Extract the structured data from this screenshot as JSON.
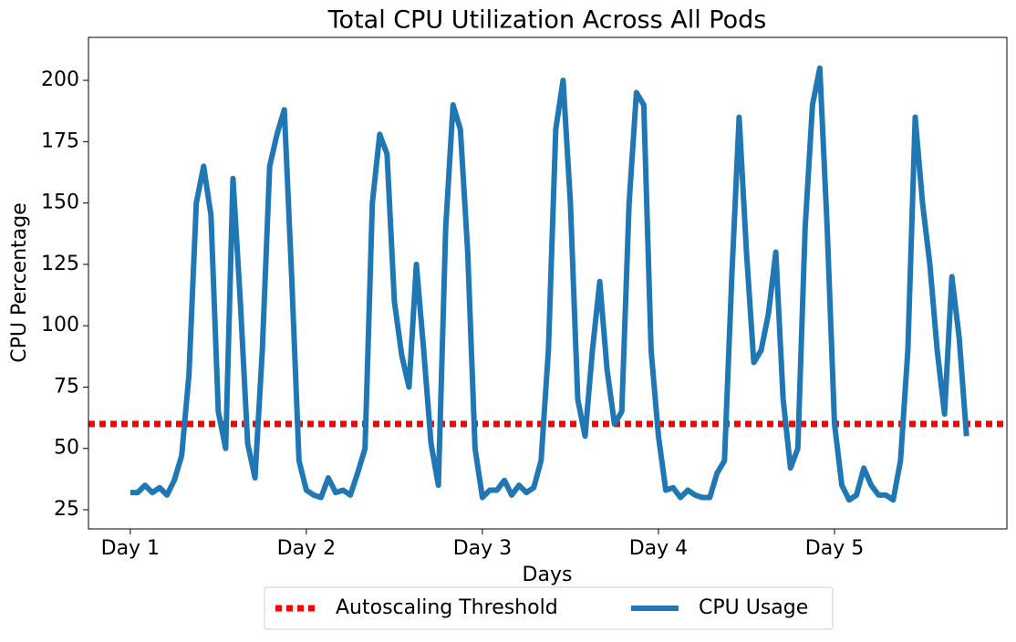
{
  "chart_data": {
    "type": "line",
    "title": "Total CPU Utilization Across All Pods",
    "x_label": "Days",
    "y_label": "CPU Percentage",
    "x": [
      0,
      1,
      2,
      3,
      4,
      5,
      6,
      7,
      8,
      9,
      10,
      11,
      12,
      13,
      14,
      15,
      16,
      17,
      18,
      19,
      20,
      21,
      22,
      23,
      24,
      25,
      26,
      27,
      28,
      29,
      30,
      31,
      32,
      33,
      34,
      35,
      36,
      37,
      38,
      39,
      40,
      41,
      42,
      43,
      44,
      45,
      46,
      47,
      48,
      49,
      50,
      51,
      52,
      53,
      54,
      55,
      56,
      57,
      58,
      59,
      60,
      61,
      62,
      63,
      64,
      65,
      66,
      67,
      68,
      69,
      70,
      71,
      72,
      73,
      74,
      75,
      76,
      77,
      78,
      79,
      80,
      81,
      82,
      83,
      84,
      85,
      86,
      87,
      88,
      89,
      90,
      91,
      92,
      93,
      94,
      95,
      96,
      97,
      98,
      99,
      100,
      101,
      102,
      103,
      104,
      105,
      106,
      107,
      108,
      109,
      110,
      111,
      112,
      113,
      114
    ],
    "series": [
      {
        "name": "CPU Usage",
        "color": "#1f77b4",
        "values": [
          32,
          32,
          35,
          32,
          34,
          31,
          37,
          47,
          80,
          150,
          165,
          145,
          65,
          50,
          160,
          110,
          52,
          38,
          90,
          165,
          178,
          188,
          120,
          45,
          33,
          31,
          30,
          38,
          32,
          33,
          31,
          40,
          50,
          150,
          178,
          170,
          110,
          88,
          75,
          125,
          90,
          52,
          35,
          140,
          190,
          180,
          130,
          50,
          30,
          33,
          33,
          37,
          31,
          35,
          32,
          34,
          45,
          90,
          180,
          200,
          150,
          70,
          55,
          90,
          118,
          82,
          60,
          65,
          150,
          195,
          190,
          90,
          55,
          33,
          34,
          30,
          33,
          31,
          30,
          30,
          40,
          45,
          120,
          185,
          130,
          85,
          90,
          105,
          130,
          70,
          42,
          50,
          140,
          190,
          205,
          140,
          60,
          35,
          29,
          31,
          42,
          35,
          31,
          31,
          29,
          45,
          90,
          185,
          150,
          125,
          90,
          64,
          120,
          95,
          55
        ]
      }
    ],
    "threshold": {
      "name": "Autoscaling Threshold",
      "value": 60,
      "color": "#ff0000"
    },
    "xlim": [
      -5.7,
      119.5
    ],
    "xticks": [
      {
        "value": 0,
        "label": "Day 1"
      },
      {
        "value": 24,
        "label": "Day 2"
      },
      {
        "value": 48,
        "label": "Day 3"
      },
      {
        "value": 72,
        "label": "Day 4"
      },
      {
        "value": 96,
        "label": "Day 5"
      }
    ],
    "ylim": [
      17.2,
      217.5
    ],
    "yticks": [
      25,
      50,
      75,
      100,
      125,
      150,
      175,
      200
    ],
    "legend_position": "bottom"
  }
}
